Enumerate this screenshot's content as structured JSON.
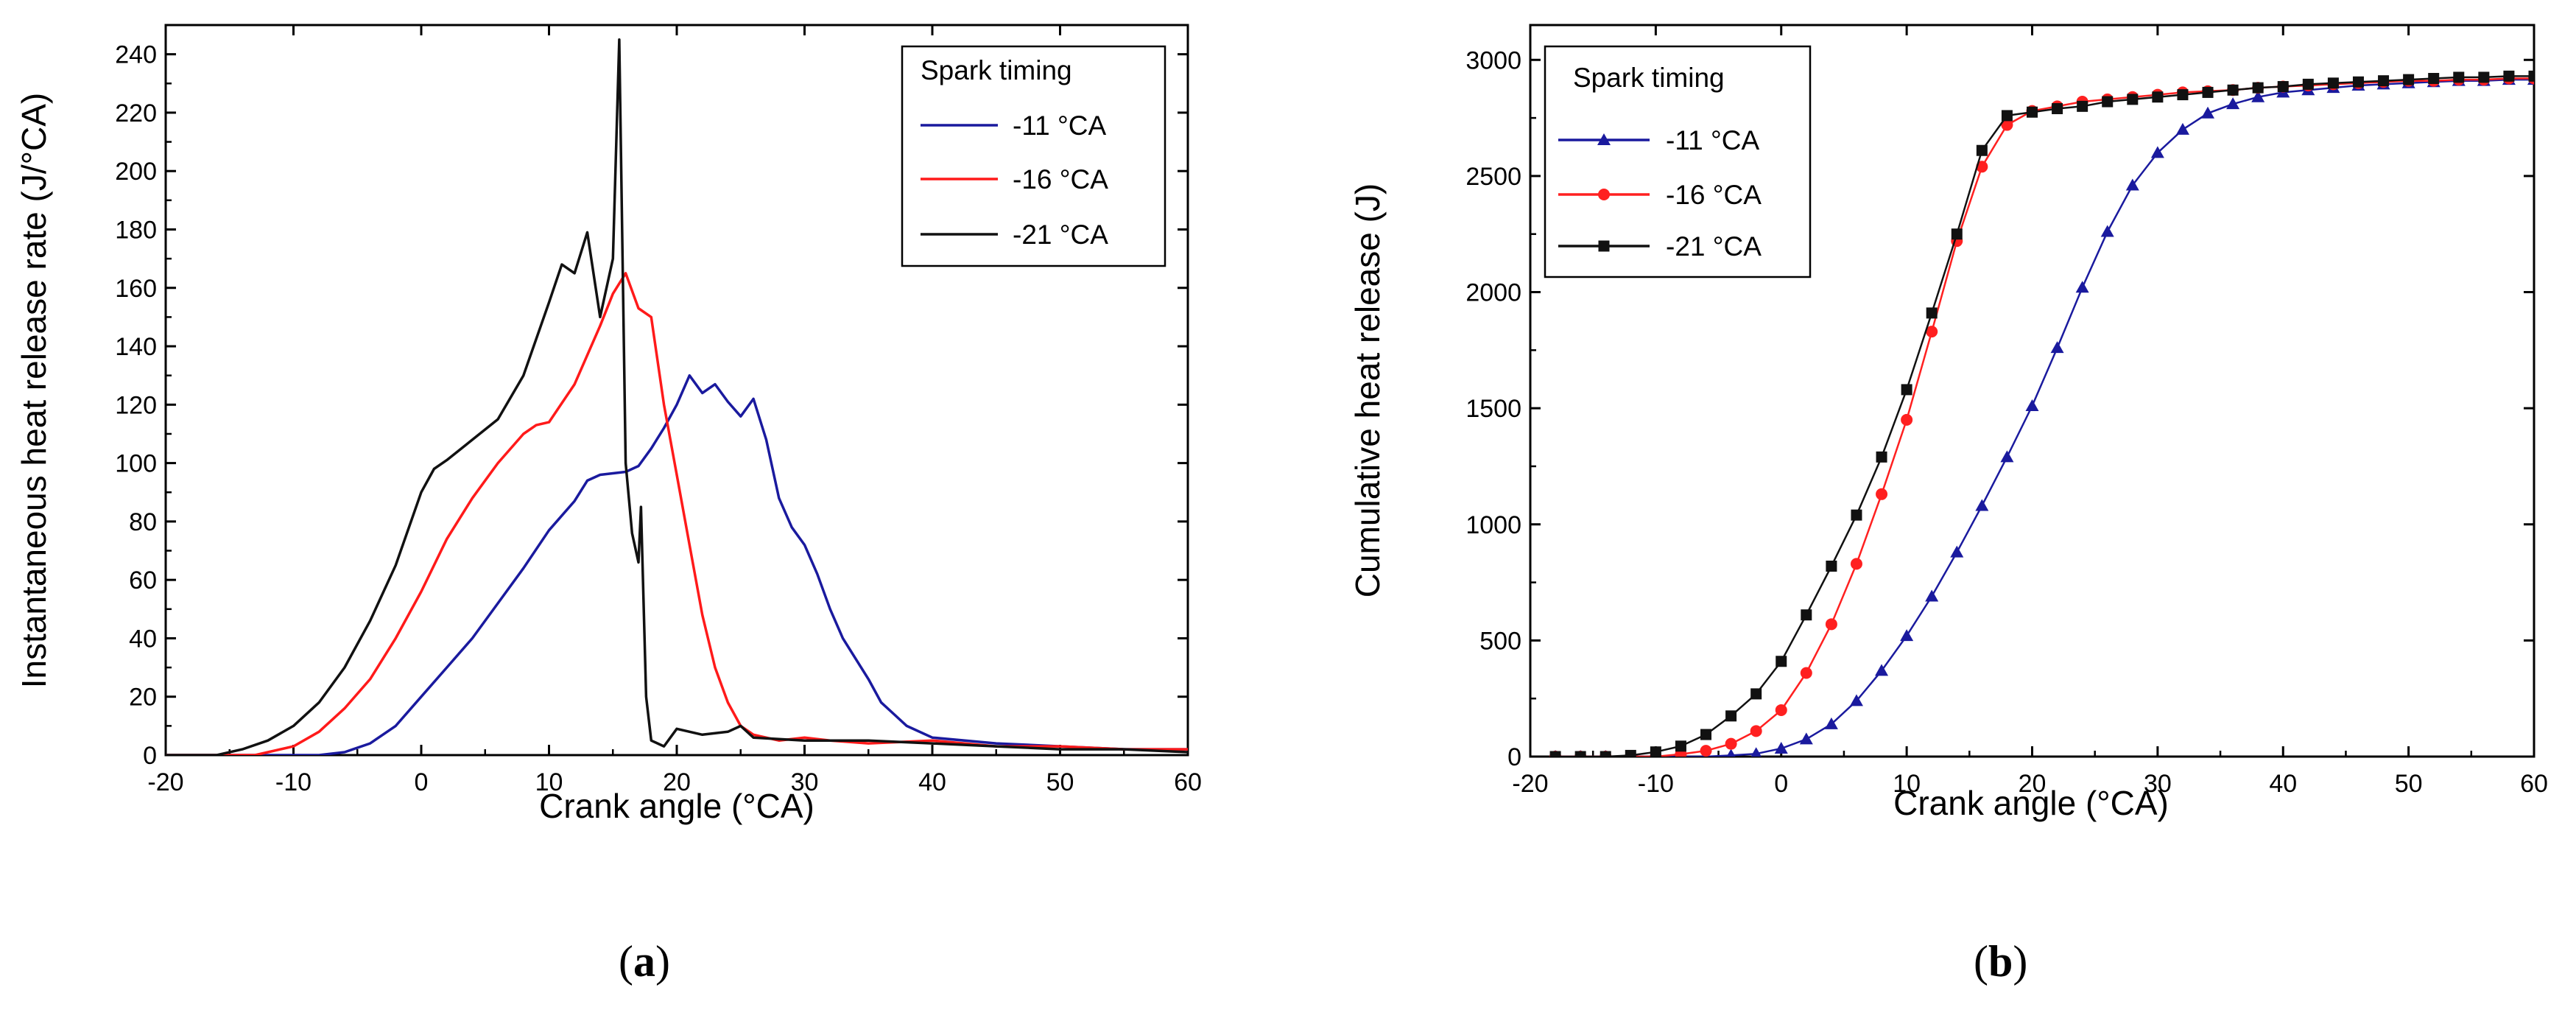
{
  "chart_data": [
    {
      "panel": "a",
      "type": "line",
      "panel_label": {
        "open": "(",
        "letter": "a",
        "close": ")"
      },
      "xlabel": "Crank angle (°CA)",
      "ylabel": "Instantaneous heat release rate (J/°CA)",
      "xlim": [
        -20,
        60
      ],
      "ylim": [
        0,
        250
      ],
      "xticks": [
        -20,
        -10,
        0,
        10,
        20,
        30,
        40,
        50,
        60
      ],
      "yticks": [
        0,
        20,
        40,
        60,
        80,
        100,
        120,
        140,
        160,
        180,
        200,
        220,
        240
      ],
      "legend": {
        "title": "Spark timing",
        "position": "top-right"
      },
      "series": [
        {
          "name": "-11 °CA",
          "color": "#1a1a9e",
          "marker": "none",
          "points": [
            [
              -20,
              0
            ],
            [
              -8,
              0
            ],
            [
              -6,
              1
            ],
            [
              -4,
              4
            ],
            [
              -2,
              10
            ],
            [
              0,
              20
            ],
            [
              2,
              30
            ],
            [
              4,
              40
            ],
            [
              6,
              52
            ],
            [
              8,
              64
            ],
            [
              10,
              77
            ],
            [
              12,
              87
            ],
            [
              13,
              94
            ],
            [
              14,
              96
            ],
            [
              16,
              97
            ],
            [
              17,
              99
            ],
            [
              18,
              105
            ],
            [
              19,
              112
            ],
            [
              20,
              120
            ],
            [
              21,
              130
            ],
            [
              22,
              124
            ],
            [
              23,
              127
            ],
            [
              24,
              121
            ],
            [
              25,
              116
            ],
            [
              26,
              122
            ],
            [
              27,
              108
            ],
            [
              28,
              88
            ],
            [
              29,
              78
            ],
            [
              30,
              72
            ],
            [
              31,
              62
            ],
            [
              32,
              50
            ],
            [
              33,
              40
            ],
            [
              34,
              33
            ],
            [
              35,
              26
            ],
            [
              36,
              18
            ],
            [
              37,
              14
            ],
            [
              38,
              10
            ],
            [
              40,
              6
            ],
            [
              45,
              4
            ],
            [
              50,
              3
            ],
            [
              55,
              2
            ],
            [
              60,
              2
            ]
          ]
        },
        {
          "name": "-16 °CA",
          "color": "#ff1a1a",
          "marker": "none",
          "points": [
            [
              -20,
              0
            ],
            [
              -13,
              0
            ],
            [
              -12,
              1
            ],
            [
              -10,
              3
            ],
            [
              -8,
              8
            ],
            [
              -6,
              16
            ],
            [
              -4,
              26
            ],
            [
              -2,
              40
            ],
            [
              0,
              56
            ],
            [
              2,
              74
            ],
            [
              4,
              88
            ],
            [
              6,
              100
            ],
            [
              8,
              110
            ],
            [
              9,
              113
            ],
            [
              10,
              114
            ],
            [
              12,
              127
            ],
            [
              14,
              147
            ],
            [
              15,
              158
            ],
            [
              16,
              165
            ],
            [
              17,
              153
            ],
            [
              18,
              150
            ],
            [
              19,
              120
            ],
            [
              20,
              96
            ],
            [
              21,
              72
            ],
            [
              22,
              48
            ],
            [
              23,
              30
            ],
            [
              24,
              18
            ],
            [
              25,
              10
            ],
            [
              26,
              7
            ],
            [
              28,
              5
            ],
            [
              30,
              6
            ],
            [
              32,
              5
            ],
            [
              35,
              4
            ],
            [
              40,
              5
            ],
            [
              45,
              3
            ],
            [
              50,
              3
            ],
            [
              55,
              2
            ],
            [
              60,
              2
            ]
          ]
        },
        {
          "name": "-21 °CA",
          "color": "#111111",
          "marker": "none",
          "points": [
            [
              -20,
              0
            ],
            [
              -16,
              0
            ],
            [
              -14,
              2
            ],
            [
              -12,
              5
            ],
            [
              -10,
              10
            ],
            [
              -8,
              18
            ],
            [
              -6,
              30
            ],
            [
              -4,
              46
            ],
            [
              -2,
              65
            ],
            [
              0,
              90
            ],
            [
              1,
              98
            ],
            [
              2,
              101
            ],
            [
              4,
              108
            ],
            [
              6,
              115
            ],
            [
              8,
              130
            ],
            [
              10,
              155
            ],
            [
              11,
              168
            ],
            [
              12,
              165
            ],
            [
              13,
              179
            ],
            [
              14,
              150
            ],
            [
              15,
              170
            ],
            [
              15.5,
              245
            ],
            [
              16,
              100
            ],
            [
              16.5,
              76
            ],
            [
              17,
              66
            ],
            [
              17.2,
              85
            ],
            [
              17.6,
              20
            ],
            [
              18,
              5
            ],
            [
              19,
              3
            ],
            [
              20,
              9
            ],
            [
              22,
              7
            ],
            [
              24,
              8
            ],
            [
              25,
              10
            ],
            [
              26,
              6
            ],
            [
              30,
              5
            ],
            [
              35,
              5
            ],
            [
              40,
              4
            ],
            [
              45,
              3
            ],
            [
              50,
              2
            ],
            [
              55,
              2
            ],
            [
              60,
              1
            ]
          ]
        }
      ]
    },
    {
      "panel": "b",
      "type": "line",
      "panel_label": {
        "open": "(",
        "letter": "b",
        "close": ")"
      },
      "xlabel": "Crank angle (°CA)",
      "ylabel": "Cumulative heat release (J)",
      "xlim": [
        -20,
        60
      ],
      "ylim": [
        0,
        3150
      ],
      "xticks": [
        -20,
        -10,
        0,
        10,
        20,
        30,
        40,
        50,
        60
      ],
      "yticks": [
        0,
        500,
        1000,
        1500,
        2000,
        2500,
        3000
      ],
      "legend": {
        "title": "Spark timing",
        "position": "top-left"
      },
      "series": [
        {
          "name": "-11 °CA",
          "color": "#1a1a9e",
          "marker": "triangle",
          "points": [
            [
              -18,
              0
            ],
            [
              -16,
              0
            ],
            [
              -14,
              0
            ],
            [
              -12,
              0
            ],
            [
              -10,
              0
            ],
            [
              -8,
              0
            ],
            [
              -6,
              0
            ],
            [
              -4,
              5
            ],
            [
              -2,
              12
            ],
            [
              0,
              35
            ],
            [
              2,
              75
            ],
            [
              4,
              140
            ],
            [
              6,
              240
            ],
            [
              8,
              370
            ],
            [
              10,
              520
            ],
            [
              12,
              690
            ],
            [
              14,
              880
            ],
            [
              16,
              1080
            ],
            [
              18,
              1290
            ],
            [
              20,
              1510
            ],
            [
              22,
              1760
            ],
            [
              24,
              2020
            ],
            [
              26,
              2260
            ],
            [
              28,
              2460
            ],
            [
              30,
              2600
            ],
            [
              32,
              2700
            ],
            [
              34,
              2770
            ],
            [
              36,
              2810
            ],
            [
              38,
              2840
            ],
            [
              40,
              2860
            ],
            [
              42,
              2870
            ],
            [
              44,
              2880
            ],
            [
              46,
              2890
            ],
            [
              48,
              2895
            ],
            [
              50,
              2900
            ],
            [
              52,
              2905
            ],
            [
              54,
              2910
            ],
            [
              56,
              2910
            ],
            [
              58,
              2915
            ],
            [
              60,
              2915
            ]
          ]
        },
        {
          "name": "-16 °CA",
          "color": "#ff2020",
          "marker": "circle",
          "points": [
            [
              -18,
              0
            ],
            [
              -16,
              0
            ],
            [
              -14,
              0
            ],
            [
              -12,
              0
            ],
            [
              -10,
              0
            ],
            [
              -8,
              10
            ],
            [
              -6,
              25
            ],
            [
              -4,
              55
            ],
            [
              -2,
              110
            ],
            [
              0,
              200
            ],
            [
              2,
              360
            ],
            [
              4,
              570
            ],
            [
              6,
              830
            ],
            [
              8,
              1130
            ],
            [
              10,
              1450
            ],
            [
              12,
              1830
            ],
            [
              14,
              2220
            ],
            [
              16,
              2540
            ],
            [
              18,
              2720
            ],
            [
              20,
              2780
            ],
            [
              22,
              2800
            ],
            [
              24,
              2820
            ],
            [
              26,
              2830
            ],
            [
              28,
              2840
            ],
            [
              30,
              2850
            ],
            [
              32,
              2860
            ],
            [
              34,
              2865
            ],
            [
              36,
              2870
            ],
            [
              38,
              2880
            ],
            [
              40,
              2885
            ],
            [
              42,
              2890
            ],
            [
              44,
              2895
            ],
            [
              46,
              2900
            ],
            [
              48,
              2905
            ],
            [
              50,
              2910
            ],
            [
              52,
              2910
            ],
            [
              54,
              2915
            ],
            [
              56,
              2915
            ],
            [
              58,
              2920
            ],
            [
              60,
              2920
            ]
          ]
        },
        {
          "name": "-21 °CA",
          "color": "#111111",
          "marker": "square",
          "points": [
            [
              -18,
              0
            ],
            [
              -16,
              0
            ],
            [
              -14,
              0
            ],
            [
              -12,
              5
            ],
            [
              -10,
              20
            ],
            [
              -8,
              45
            ],
            [
              -6,
              95
            ],
            [
              -4,
              175
            ],
            [
              -2,
              270
            ],
            [
              0,
              410
            ],
            [
              2,
              610
            ],
            [
              4,
              820
            ],
            [
              6,
              1040
            ],
            [
              8,
              1290
            ],
            [
              10,
              1580
            ],
            [
              12,
              1910
            ],
            [
              14,
              2250
            ],
            [
              16,
              2610
            ],
            [
              18,
              2760
            ],
            [
              20,
              2775
            ],
            [
              22,
              2790
            ],
            [
              24,
              2800
            ],
            [
              26,
              2820
            ],
            [
              28,
              2830
            ],
            [
              30,
              2840
            ],
            [
              32,
              2850
            ],
            [
              34,
              2860
            ],
            [
              36,
              2870
            ],
            [
              38,
              2880
            ],
            [
              40,
              2885
            ],
            [
              42,
              2895
            ],
            [
              44,
              2900
            ],
            [
              46,
              2905
            ],
            [
              48,
              2910
            ],
            [
              50,
              2915
            ],
            [
              52,
              2920
            ],
            [
              54,
              2925
            ],
            [
              56,
              2925
            ],
            [
              58,
              2930
            ],
            [
              60,
              2930
            ]
          ]
        }
      ]
    }
  ]
}
